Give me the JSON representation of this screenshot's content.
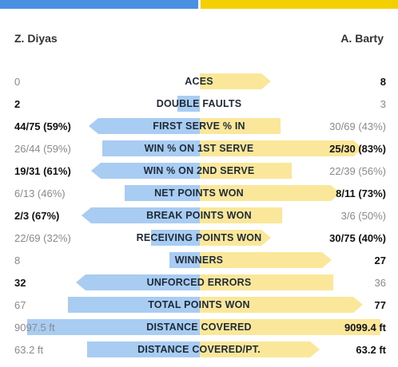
{
  "colors": {
    "player1": "#4a90e2",
    "player2": "#f5d000",
    "player1_bar": "#a9cdf2",
    "player2_bar": "#fbe79a"
  },
  "players": {
    "p1": "Z. Diyas",
    "p2": "A. Barty"
  },
  "stats": [
    {
      "label": "ACES",
      "p1": "0",
      "p2": "8",
      "p1_share": 0.0,
      "p2_share": 0.38,
      "leader": "p2",
      "arrow": "p2"
    },
    {
      "label": "DOUBLE FAULTS",
      "p1": "2",
      "p2": "3",
      "p1_share": 0.12,
      "p2_share": 0.0,
      "leader": "p1",
      "arrow": "none"
    },
    {
      "label": "FIRST SERVE % IN",
      "p1": "44/75 (59%)",
      "p2": "30/69 (43%)",
      "p1_share": 0.59,
      "p2_share": 0.43,
      "leader": "p1",
      "arrow": "p1"
    },
    {
      "label": "WIN % ON 1ST SERVE",
      "p1": "26/44 (59%)",
      "p2": "25/30 (83%)",
      "p1_share": 0.52,
      "p2_share": 0.87,
      "leader": "p2",
      "arrow": "p2"
    },
    {
      "label": "WIN % ON 2ND SERVE",
      "p1": "19/31 (61%)",
      "p2": "22/39 (56%)",
      "p1_share": 0.58,
      "p2_share": 0.49,
      "leader": "p1",
      "arrow": "p1"
    },
    {
      "label": "NET POINTS WON",
      "p1": "6/13 (46%)",
      "p2": "8/11 (73%)",
      "p1_share": 0.4,
      "p2_share": 0.75,
      "leader": "p2",
      "arrow": "p2"
    },
    {
      "label": "BREAK POINTS WON",
      "p1": "2/3 (67%)",
      "p2": "3/6 (50%)",
      "p1_share": 0.63,
      "p2_share": 0.44,
      "leader": "p1",
      "arrow": "p1"
    },
    {
      "label": "RECEIVING POINTS WON",
      "p1": "22/69 (32%)",
      "p2": "30/75 (40%)",
      "p1_share": 0.26,
      "p2_share": 0.38,
      "leader": "p2",
      "arrow": "p2"
    },
    {
      "label": "WINNERS",
      "p1": "8",
      "p2": "27",
      "p1_share": 0.16,
      "p2_share": 0.7,
      "leader": "p2",
      "arrow": "p2"
    },
    {
      "label": "UNFORCED ERRORS",
      "p1": "32",
      "p2": "36",
      "p1_share": 0.66,
      "p2_share": 0.71,
      "leader": "p1",
      "arrow": "p1"
    },
    {
      "label": "TOTAL POINTS WON",
      "p1": "67",
      "p2": "77",
      "p1_share": 0.7,
      "p2_share": 0.87,
      "leader": "p2",
      "arrow": "p2"
    },
    {
      "label": "DISTANCE COVERED",
      "p1": "9097.5 ft",
      "p2": "9099.4 ft",
      "p1_share": 0.92,
      "p2_share": 0.96,
      "leader": "p2",
      "arrow": "none"
    },
    {
      "label": "DISTANCE COVERED/PT.",
      "p1": "63.2 ft",
      "p2": "63.2 ft",
      "p1_share": 0.6,
      "p2_share": 0.64,
      "leader": "p2",
      "arrow": "p2"
    }
  ]
}
